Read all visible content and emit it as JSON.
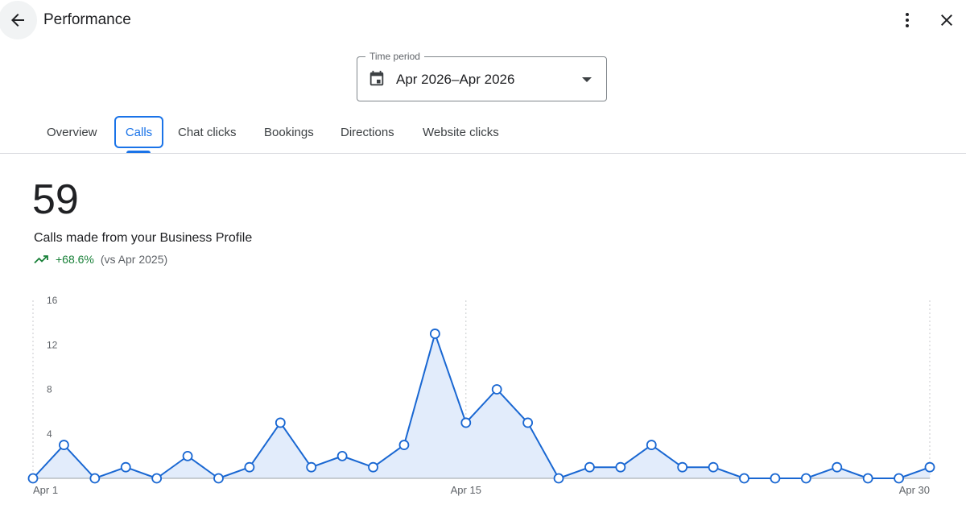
{
  "header": {
    "title": "Performance",
    "back_icon": "arrow-left-icon",
    "more_icon": "more-vert-icon",
    "close_icon": "close-icon"
  },
  "time_period": {
    "label": "Time period",
    "value": "Apr 2026–Apr 2026",
    "icon": "calendar-icon"
  },
  "tabs": [
    {
      "label": "Overview",
      "active": false
    },
    {
      "label": "Calls",
      "active": true
    },
    {
      "label": "Chat clicks",
      "active": false
    },
    {
      "label": "Bookings",
      "active": false
    },
    {
      "label": "Directions",
      "active": false
    },
    {
      "label": "Website clicks",
      "active": false
    }
  ],
  "metric": {
    "value": "59",
    "label": "Calls made from your Business Profile",
    "change": "+68.6%",
    "comparison": "(vs Apr 2025)"
  },
  "colors": {
    "accent": "#1a73e8",
    "line": "#1967d2",
    "area": "#e2ecfb",
    "positive": "#188038"
  },
  "chart_data": {
    "type": "area",
    "x": [
      "Apr 1",
      "Apr 2",
      "Apr 3",
      "Apr 4",
      "Apr 5",
      "Apr 6",
      "Apr 7",
      "Apr 8",
      "Apr 9",
      "Apr 10",
      "Apr 11",
      "Apr 12",
      "Apr 13",
      "Apr 14",
      "Apr 15",
      "Apr 16",
      "Apr 17",
      "Apr 18",
      "Apr 19",
      "Apr 20",
      "Apr 21",
      "Apr 22",
      "Apr 23",
      "Apr 24",
      "Apr 25",
      "Apr 26",
      "Apr 27",
      "Apr 28",
      "Apr 29",
      "Apr 30"
    ],
    "values": [
      0,
      3,
      0,
      1,
      0,
      2,
      0,
      1,
      5,
      1,
      2,
      1,
      3,
      13,
      5,
      8,
      5,
      0,
      1,
      1,
      3,
      1,
      1,
      0,
      0,
      0,
      1,
      0,
      0,
      1
    ],
    "y_ticks": [
      "4",
      "8",
      "12",
      "16"
    ],
    "ylim": [
      0,
      16
    ],
    "x_tick_labels": [
      {
        "index": 0,
        "label": "Apr 1"
      },
      {
        "index": 14,
        "label": "Apr 15"
      },
      {
        "index": 29,
        "label": "Apr 30"
      }
    ],
    "grid": "vertical-dashed-at-ticks"
  }
}
